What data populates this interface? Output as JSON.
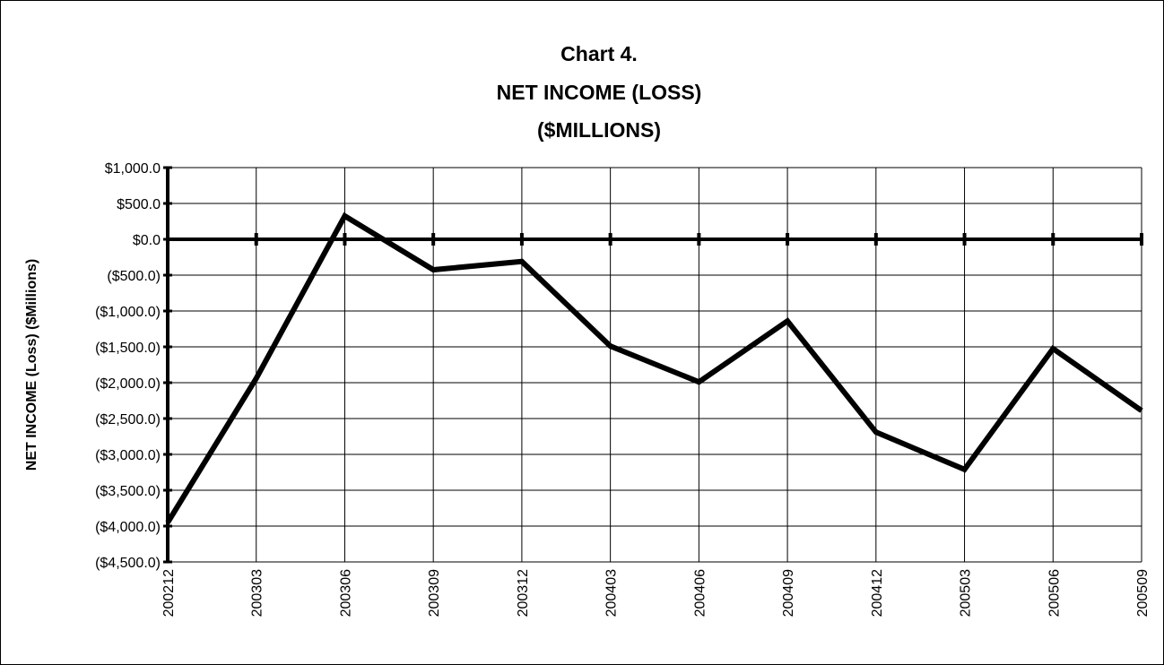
{
  "chart_data": {
    "type": "line",
    "title": [
      "Chart 4.",
      "NET INCOME (LOSS)",
      "($MILLIONS)"
    ],
    "y_label": "NET INCOME (Loss) ($Millions)",
    "categories": [
      "200212",
      "200303",
      "200306",
      "200309",
      "200312",
      "200403",
      "200406",
      "200409",
      "200412",
      "200503",
      "200506",
      "200509"
    ],
    "series": [
      {
        "name": "NET INCOME (LOSS)",
        "color": "#000000",
        "values": [
          -3950,
          -1940,
          325,
          -425,
          -310,
          -1490,
          -1990,
          -1140,
          -2690,
          -3210,
          -1525,
          -2390
        ]
      }
    ],
    "ylim": [
      -4500,
      1000
    ],
    "yticks": [
      {
        "value": 1000,
        "label": "$1,000.0"
      },
      {
        "value": 500,
        "label": "$500.0"
      },
      {
        "value": 0,
        "label": "$0.0"
      },
      {
        "value": -500,
        "label": "($500.0)"
      },
      {
        "value": -1000,
        "label": "($1,000.0)"
      },
      {
        "value": -1500,
        "label": "($1,500.0)"
      },
      {
        "value": -2000,
        "label": "($2,000.0)"
      },
      {
        "value": -2500,
        "label": "($2,500.0)"
      },
      {
        "value": -3000,
        "label": "($3,000.0)"
      },
      {
        "value": -3500,
        "label": "($3,500.0)"
      },
      {
        "value": -4000,
        "label": "($4,000.0)"
      },
      {
        "value": -4500,
        "label": "($4,500.0)"
      }
    ],
    "grid": true
  }
}
